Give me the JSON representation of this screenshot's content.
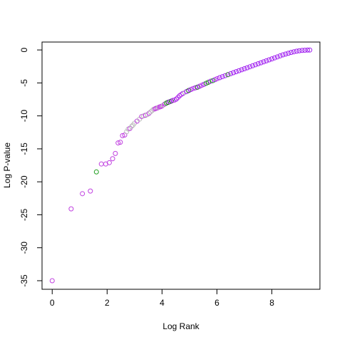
{
  "chart_data": {
    "type": "scatter",
    "xlabel": "Log Rank",
    "ylabel": "Log P-value",
    "xlim": [
      -0.37,
      9.75
    ],
    "ylim": [
      -36.3,
      1.2
    ],
    "x_ticks": [
      0,
      2,
      4,
      6,
      8
    ],
    "y_ticks": [
      0,
      -5,
      -10,
      -15,
      -20,
      -25,
      -30,
      -35
    ],
    "grid": false,
    "legend": "none",
    "marker": "open-circle",
    "colors": {
      "purple": "#a020f0",
      "violet": "#c040e0",
      "gray": "#bebebe",
      "green": "#22a022",
      "darkgreen": "#2a6a2a"
    },
    "points": [
      {
        "x": 0.0,
        "y": -35.0,
        "c": "violet"
      },
      {
        "x": 0.69,
        "y": -24.1,
        "c": "violet"
      },
      {
        "x": 1.1,
        "y": -21.8,
        "c": "violet"
      },
      {
        "x": 1.39,
        "y": -21.4,
        "c": "violet"
      },
      {
        "x": 1.61,
        "y": -18.5,
        "c": "green"
      },
      {
        "x": 1.79,
        "y": -17.3,
        "c": "violet"
      },
      {
        "x": 1.95,
        "y": -17.3,
        "c": "violet"
      },
      {
        "x": 2.08,
        "y": -17.1,
        "c": "violet"
      },
      {
        "x": 2.2,
        "y": -16.5,
        "c": "violet"
      },
      {
        "x": 2.3,
        "y": -15.7,
        "c": "violet"
      },
      {
        "x": 2.4,
        "y": -14.1,
        "c": "violet"
      },
      {
        "x": 2.48,
        "y": -14.0,
        "c": "violet"
      },
      {
        "x": 2.56,
        "y": -13.0,
        "c": "violet"
      },
      {
        "x": 2.64,
        "y": -12.9,
        "c": "violet"
      },
      {
        "x": 2.71,
        "y": -12.4,
        "c": "gray"
      },
      {
        "x": 2.77,
        "y": -12.0,
        "c": "gray"
      },
      {
        "x": 2.83,
        "y": -11.9,
        "c": "violet"
      },
      {
        "x": 2.89,
        "y": -11.6,
        "c": "gray"
      },
      {
        "x": 2.94,
        "y": -11.4,
        "c": "gray"
      },
      {
        "x": 3.0,
        "y": -11.1,
        "c": "gray"
      },
      {
        "x": 3.09,
        "y": -10.8,
        "c": "violet"
      },
      {
        "x": 3.18,
        "y": -10.5,
        "c": "gray"
      },
      {
        "x": 3.26,
        "y": -10.1,
        "c": "violet"
      },
      {
        "x": 3.33,
        "y": -10.0,
        "c": "gray"
      },
      {
        "x": 3.4,
        "y": -9.9,
        "c": "violet"
      },
      {
        "x": 3.47,
        "y": -9.8,
        "c": "gray"
      },
      {
        "x": 3.53,
        "y": -9.6,
        "c": "violet"
      },
      {
        "x": 3.58,
        "y": -9.4,
        "c": "gray"
      },
      {
        "x": 3.64,
        "y": -9.2,
        "c": "gray"
      },
      {
        "x": 3.69,
        "y": -9.0,
        "c": "gray"
      },
      {
        "x": 3.74,
        "y": -8.95,
        "c": "violet"
      },
      {
        "x": 3.78,
        "y": -8.85,
        "c": "violet"
      },
      {
        "x": 3.83,
        "y": -8.8,
        "c": "violet"
      },
      {
        "x": 3.87,
        "y": -8.7,
        "c": "gray"
      },
      {
        "x": 3.91,
        "y": -8.65,
        "c": "violet"
      },
      {
        "x": 3.95,
        "y": -8.6,
        "c": "violet"
      },
      {
        "x": 4.0,
        "y": -8.5,
        "c": "violet"
      },
      {
        "x": 4.05,
        "y": -8.35,
        "c": "gray"
      },
      {
        "x": 4.1,
        "y": -8.2,
        "c": "violet"
      },
      {
        "x": 4.16,
        "y": -8.05,
        "c": "green"
      },
      {
        "x": 4.22,
        "y": -7.95,
        "c": "darkgreen"
      },
      {
        "x": 4.28,
        "y": -7.85,
        "c": "purple"
      },
      {
        "x": 4.34,
        "y": -7.75,
        "c": "darkgreen"
      },
      {
        "x": 4.4,
        "y": -7.65,
        "c": "purple"
      },
      {
        "x": 4.46,
        "y": -7.6,
        "c": "violet"
      },
      {
        "x": 4.52,
        "y": -7.45,
        "c": "purple"
      },
      {
        "x": 4.58,
        "y": -7.2,
        "c": "violet"
      },
      {
        "x": 4.64,
        "y": -6.95,
        "c": "purple"
      },
      {
        "x": 4.7,
        "y": -6.75,
        "c": "violet"
      },
      {
        "x": 4.76,
        "y": -6.6,
        "c": "purple"
      },
      {
        "x": 4.83,
        "y": -6.45,
        "c": "gray"
      },
      {
        "x": 4.9,
        "y": -6.3,
        "c": "purple"
      },
      {
        "x": 4.97,
        "y": -6.15,
        "c": "darkgreen"
      },
      {
        "x": 5.05,
        "y": -6.0,
        "c": "purple"
      },
      {
        "x": 5.13,
        "y": -5.85,
        "c": "violet"
      },
      {
        "x": 5.21,
        "y": -5.75,
        "c": "purple"
      },
      {
        "x": 5.29,
        "y": -5.65,
        "c": "darkgreen"
      },
      {
        "x": 5.37,
        "y": -5.5,
        "c": "purple"
      },
      {
        "x": 5.45,
        "y": -5.35,
        "c": "violet"
      },
      {
        "x": 5.53,
        "y": -5.2,
        "c": "purple"
      },
      {
        "x": 5.61,
        "y": -5.05,
        "c": "green"
      },
      {
        "x": 5.69,
        "y": -4.9,
        "c": "darkgreen"
      },
      {
        "x": 5.77,
        "y": -4.75,
        "c": "purple"
      },
      {
        "x": 5.85,
        "y": -4.65,
        "c": "green"
      },
      {
        "x": 5.93,
        "y": -4.5,
        "c": "purple"
      },
      {
        "x": 6.01,
        "y": -4.35,
        "c": "violet"
      },
      {
        "x": 6.1,
        "y": -4.2,
        "c": "purple"
      },
      {
        "x": 6.2,
        "y": -4.05,
        "c": "purple"
      },
      {
        "x": 6.3,
        "y": -3.9,
        "c": "purple"
      },
      {
        "x": 6.4,
        "y": -3.75,
        "c": "darkgreen"
      },
      {
        "x": 6.5,
        "y": -3.6,
        "c": "purple"
      },
      {
        "x": 6.6,
        "y": -3.45,
        "c": "purple"
      },
      {
        "x": 6.7,
        "y": -3.3,
        "c": "purple"
      },
      {
        "x": 6.8,
        "y": -3.15,
        "c": "purple"
      },
      {
        "x": 6.9,
        "y": -3.0,
        "c": "purple"
      },
      {
        "x": 7.0,
        "y": -2.85,
        "c": "purple"
      },
      {
        "x": 7.1,
        "y": -2.7,
        "c": "purple"
      },
      {
        "x": 7.2,
        "y": -2.55,
        "c": "purple"
      },
      {
        "x": 7.3,
        "y": -2.4,
        "c": "purple"
      },
      {
        "x": 7.4,
        "y": -2.25,
        "c": "purple"
      },
      {
        "x": 7.5,
        "y": -2.1,
        "c": "purple"
      },
      {
        "x": 7.6,
        "y": -1.95,
        "c": "purple"
      },
      {
        "x": 7.7,
        "y": -1.8,
        "c": "purple"
      },
      {
        "x": 7.8,
        "y": -1.65,
        "c": "purple"
      },
      {
        "x": 7.9,
        "y": -1.5,
        "c": "purple"
      },
      {
        "x": 8.0,
        "y": -1.35,
        "c": "purple"
      },
      {
        "x": 8.1,
        "y": -1.2,
        "c": "purple"
      },
      {
        "x": 8.2,
        "y": -1.05,
        "c": "purple"
      },
      {
        "x": 8.3,
        "y": -0.9,
        "c": "purple"
      },
      {
        "x": 8.4,
        "y": -0.75,
        "c": "purple"
      },
      {
        "x": 8.5,
        "y": -0.62,
        "c": "purple"
      },
      {
        "x": 8.6,
        "y": -0.5,
        "c": "purple"
      },
      {
        "x": 8.7,
        "y": -0.38,
        "c": "purple"
      },
      {
        "x": 8.8,
        "y": -0.28,
        "c": "purple"
      },
      {
        "x": 8.9,
        "y": -0.19,
        "c": "purple"
      },
      {
        "x": 9.0,
        "y": -0.12,
        "c": "purple"
      },
      {
        "x": 9.1,
        "y": -0.07,
        "c": "purple"
      },
      {
        "x": 9.2,
        "y": -0.04,
        "c": "purple"
      },
      {
        "x": 9.3,
        "y": -0.02,
        "c": "purple"
      },
      {
        "x": 9.38,
        "y": -0.01,
        "c": "purple"
      }
    ]
  }
}
